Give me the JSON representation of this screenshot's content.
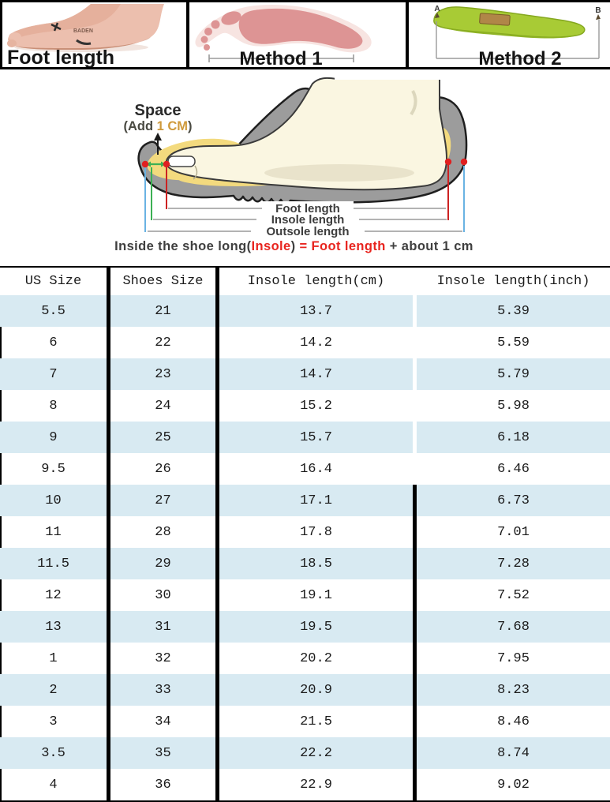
{
  "top_strip": {
    "panels": [
      {
        "label": "Foot length"
      },
      {
        "label": "Method 1"
      },
      {
        "label": "Method 2",
        "marker_a": "A",
        "marker_b": "B"
      }
    ]
  },
  "diagram": {
    "space_label": "Space",
    "space_sub_prefix": "(Add ",
    "space_sub_value": "1 CM",
    "space_sub_suffix": ")",
    "dim_labels": [
      "Foot length",
      "Insole length",
      "Outsole length"
    ],
    "formula": {
      "prefix": "Inside the shoe long(",
      "insole": "Insole",
      "close_paren": ") ",
      "equals": "= ",
      "foot_length": "Foot length",
      "plus_about": " + about ",
      "one_cm": "1 cm"
    },
    "colors": {
      "foot_line": "#cc2222",
      "insole_line": "#3cb054",
      "outsole_line": "#6ab3e3",
      "space_value": "#cf9a3c",
      "insole_yellow": "#f3da7e",
      "sole_gray": "#9c9c9c"
    }
  },
  "table": {
    "headers": [
      "US Size",
      "Shoes Size",
      "Insole length(cm)",
      "Insole length(inch)"
    ],
    "stripe_color": "#d8eaf2",
    "rows": [
      [
        "5.5",
        "21",
        "13.7",
        "5.39"
      ],
      [
        "6",
        "22",
        "14.2",
        "5.59"
      ],
      [
        "7",
        "23",
        "14.7",
        "5.79"
      ],
      [
        "8",
        "24",
        "15.2",
        "5.98"
      ],
      [
        "9",
        "25",
        "15.7",
        "6.18"
      ],
      [
        "9.5",
        "26",
        "16.4",
        "6.46"
      ],
      [
        "10",
        "27",
        "17.1",
        "6.73"
      ],
      [
        "11",
        "28",
        "17.8",
        "7.01"
      ],
      [
        "11.5",
        "29",
        "18.5",
        "7.28"
      ],
      [
        "12",
        "30",
        "19.1",
        "7.52"
      ],
      [
        "13",
        "31",
        "19.5",
        "7.68"
      ],
      [
        "1",
        "32",
        "20.2",
        "7.95"
      ],
      [
        "2",
        "33",
        "20.9",
        "8.23"
      ],
      [
        "3",
        "34",
        "21.5",
        "8.46"
      ],
      [
        "3.5",
        "35",
        "22.2",
        "8.74"
      ],
      [
        "4",
        "36",
        "22.9",
        "9.02"
      ]
    ]
  },
  "chart_data": {
    "type": "table",
    "title": "Shoe size conversion",
    "columns": [
      "US Size",
      "Shoes Size",
      "Insole length(cm)",
      "Insole length(inch)"
    ],
    "us_size": [
      "5.5",
      "6",
      "7",
      "8",
      "9",
      "9.5",
      "10",
      "11",
      "11.5",
      "12",
      "13",
      "1",
      "2",
      "3",
      "3.5",
      "4"
    ],
    "shoes_size": [
      21,
      22,
      23,
      24,
      25,
      26,
      27,
      28,
      29,
      30,
      31,
      32,
      33,
      34,
      35,
      36
    ],
    "insole_cm": [
      13.7,
      14.2,
      14.7,
      15.2,
      15.7,
      16.4,
      17.1,
      17.8,
      18.5,
      19.1,
      19.5,
      20.2,
      20.9,
      21.5,
      22.2,
      22.9
    ],
    "insole_inch": [
      5.39,
      5.59,
      5.79,
      5.98,
      6.18,
      6.46,
      6.73,
      7.01,
      7.28,
      7.52,
      7.68,
      7.95,
      8.23,
      8.46,
      8.74,
      9.02
    ]
  }
}
